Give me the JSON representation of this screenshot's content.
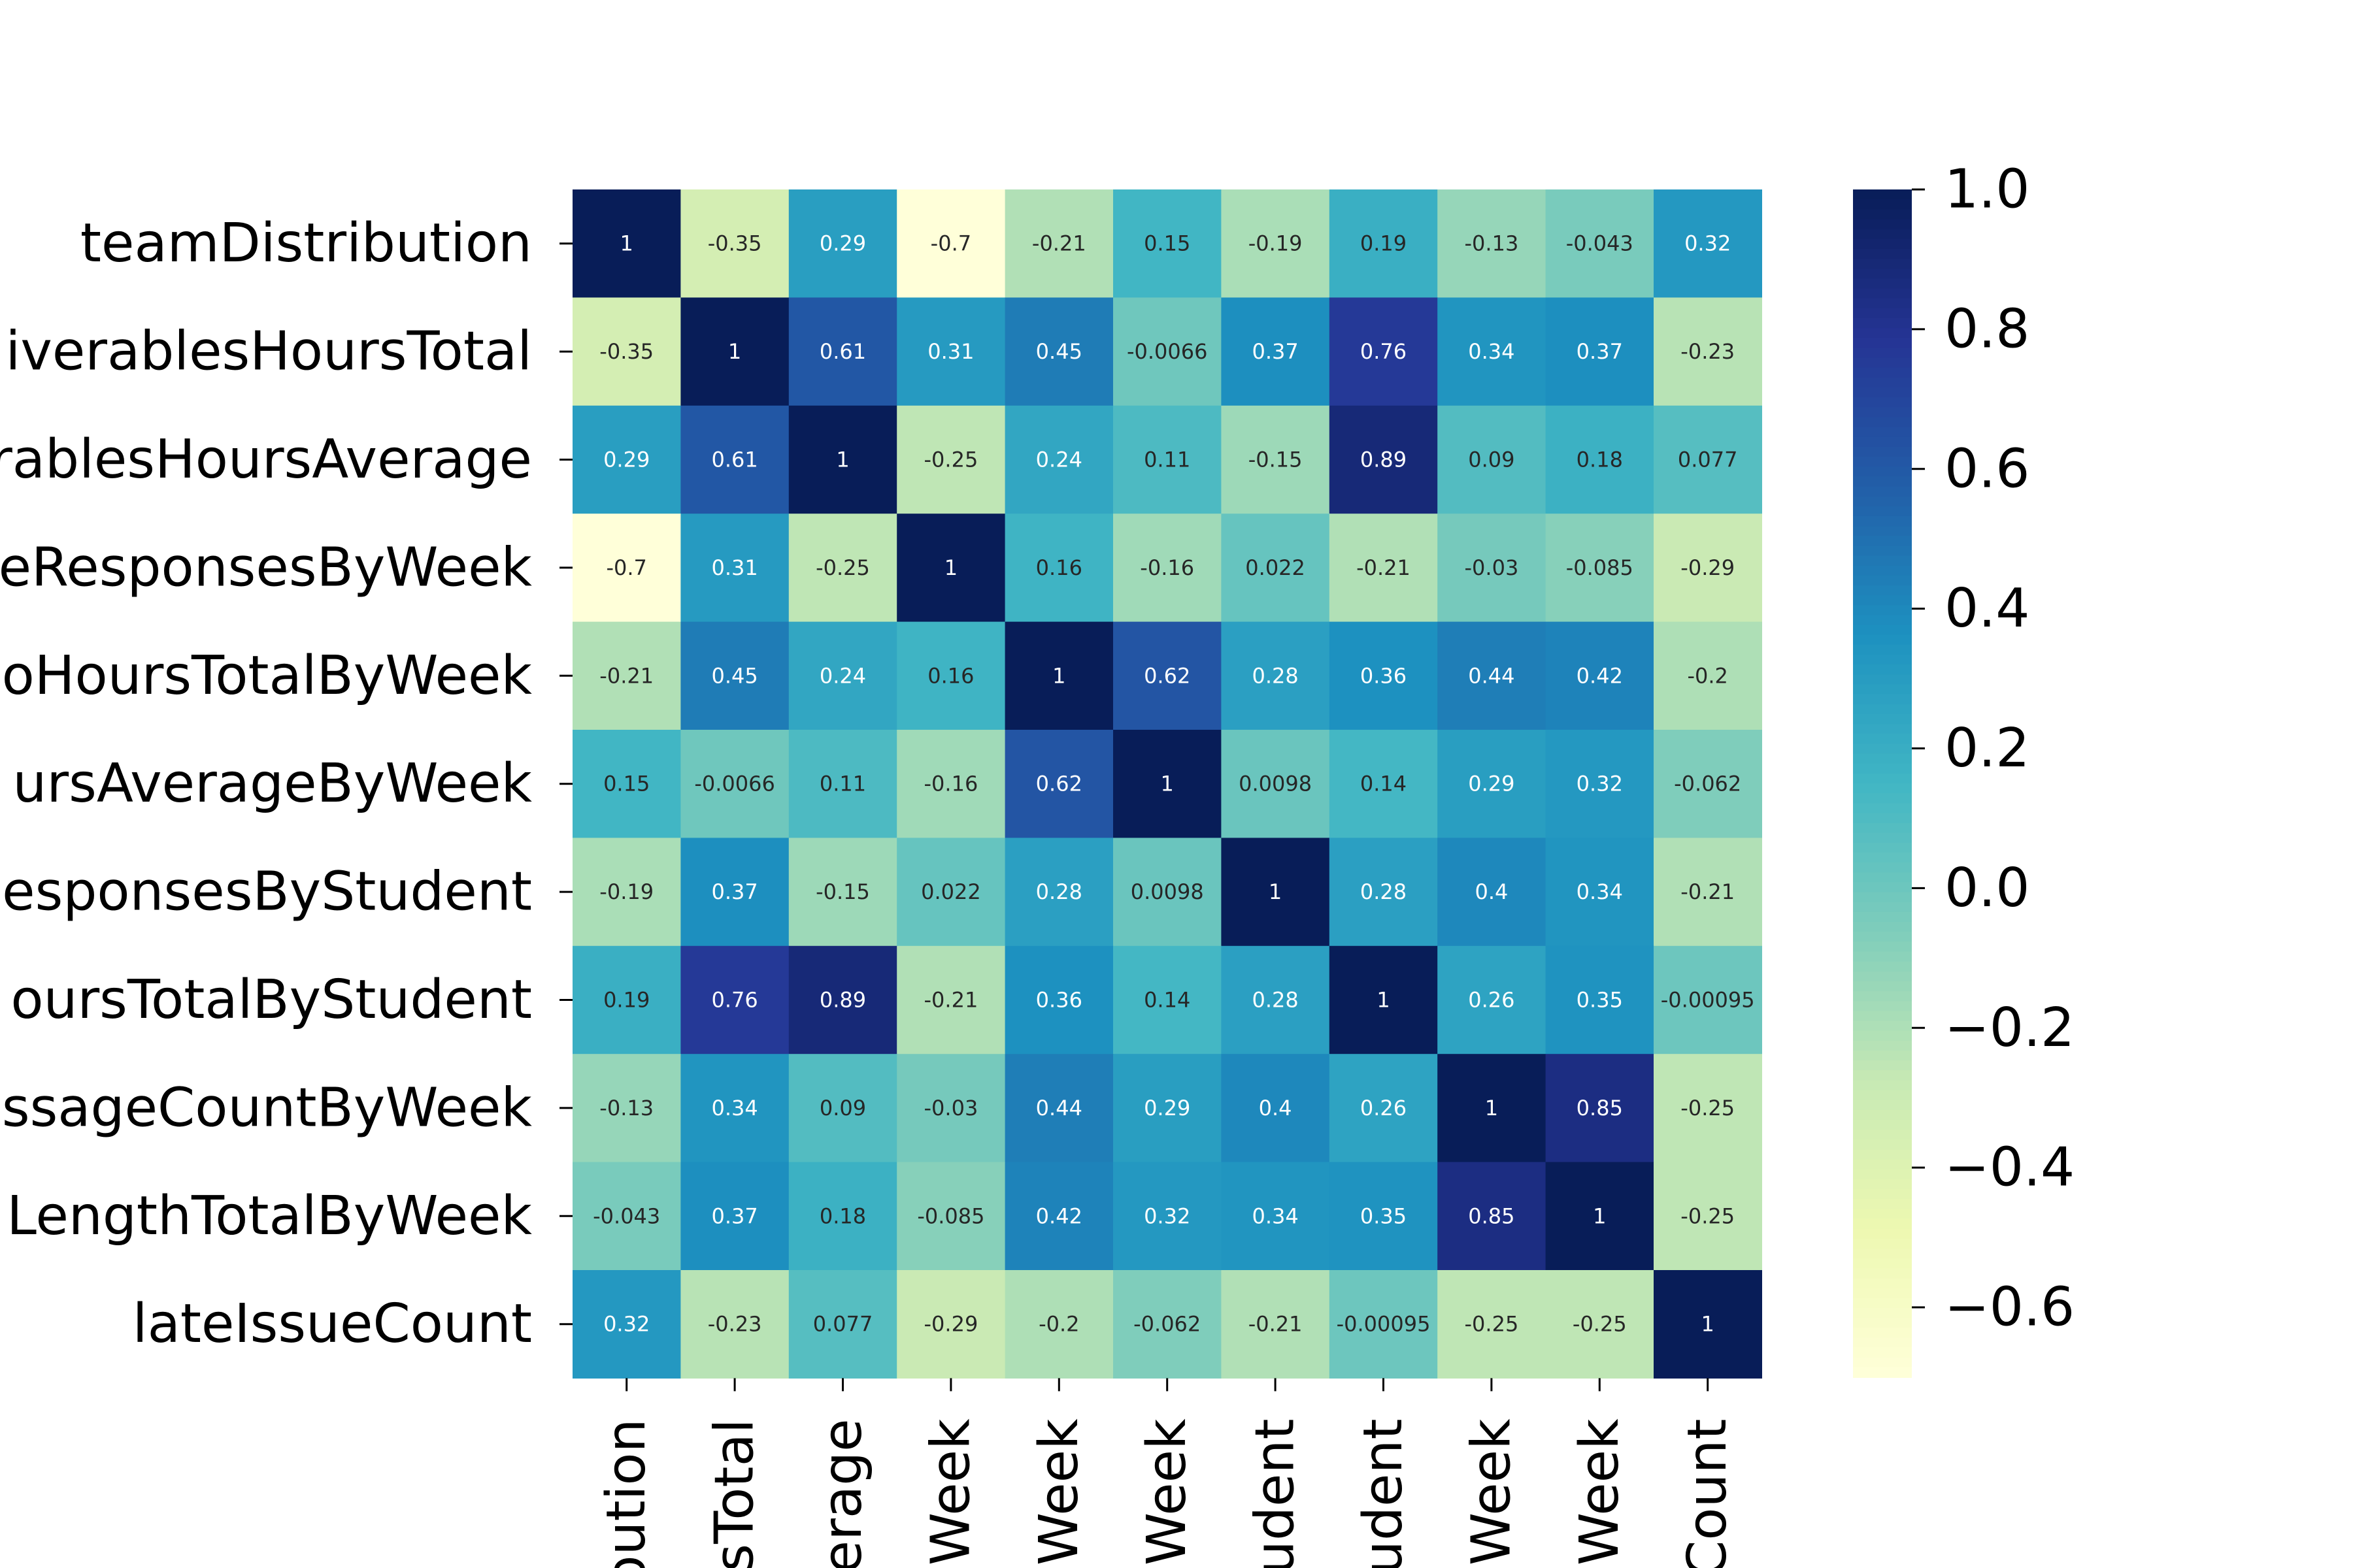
{
  "chart_data": {
    "type": "heatmap",
    "row_labels": [
      "teamDistribution",
      "iverablesHoursTotal",
      "rablesHoursAverage",
      "eResponsesByWeek",
      "oHoursTotalByWeek",
      "ursAverageByWeek",
      "esponsesByStudent",
      "oursTotalByStudent",
      "ssageCountByWeek",
      "LengthTotalByWeek",
      "lateIssueCount"
    ],
    "col_labels": [
      "bution",
      "sTotal",
      "erage",
      "Week",
      "Week",
      "Week",
      "udent",
      "udent",
      "Week",
      "Week",
      "Count"
    ],
    "values": [
      [
        1,
        -0.35,
        0.29,
        -0.7,
        -0.21,
        0.15,
        -0.19,
        0.19,
        -0.13,
        -0.043,
        0.32
      ],
      [
        -0.35,
        1,
        0.61,
        0.31,
        0.45,
        -0.0066,
        0.37,
        0.76,
        0.34,
        0.37,
        -0.23
      ],
      [
        0.29,
        0.61,
        1,
        -0.25,
        0.24,
        0.11,
        -0.15,
        0.89,
        0.09,
        0.18,
        0.077
      ],
      [
        -0.7,
        0.31,
        -0.25,
        1,
        0.16,
        -0.16,
        0.022,
        -0.21,
        -0.03,
        -0.085,
        -0.29
      ],
      [
        -0.21,
        0.45,
        0.24,
        0.16,
        1,
        0.62,
        0.28,
        0.36,
        0.44,
        0.42,
        -0.2
      ],
      [
        0.15,
        -0.0066,
        0.11,
        -0.16,
        0.62,
        1,
        0.0098,
        0.14,
        0.29,
        0.32,
        -0.062
      ],
      [
        -0.19,
        0.37,
        -0.15,
        0.022,
        0.28,
        0.0098,
        1,
        0.28,
        0.4,
        0.34,
        -0.21
      ],
      [
        0.19,
        0.76,
        0.89,
        -0.21,
        0.36,
        0.14,
        0.28,
        1,
        0.26,
        0.35,
        -0.00095
      ],
      [
        -0.13,
        0.34,
        0.09,
        -0.03,
        0.44,
        0.29,
        0.4,
        0.26,
        1,
        0.85,
        -0.25
      ],
      [
        -0.043,
        0.37,
        0.18,
        -0.085,
        0.42,
        0.32,
        0.34,
        0.35,
        0.85,
        1,
        -0.25
      ],
      [
        0.32,
        -0.23,
        0.077,
        -0.29,
        -0.2,
        -0.062,
        -0.21,
        -0.00095,
        -0.25,
        -0.25,
        1
      ]
    ],
    "colorbar": {
      "vmin": -0.7,
      "vmax": 1.0,
      "ticks": [
        1.0,
        0.8,
        0.6,
        0.4,
        0.2,
        0.0,
        -0.2,
        -0.4,
        -0.6
      ],
      "tick_labels": [
        "1.0",
        "0.8",
        "0.6",
        "0.4",
        "0.2",
        "0.0",
        "−0.2",
        "−0.4",
        "−0.6"
      ]
    },
    "colormap": "YlGnBu",
    "title": "",
    "xlabel": "",
    "ylabel": ""
  }
}
